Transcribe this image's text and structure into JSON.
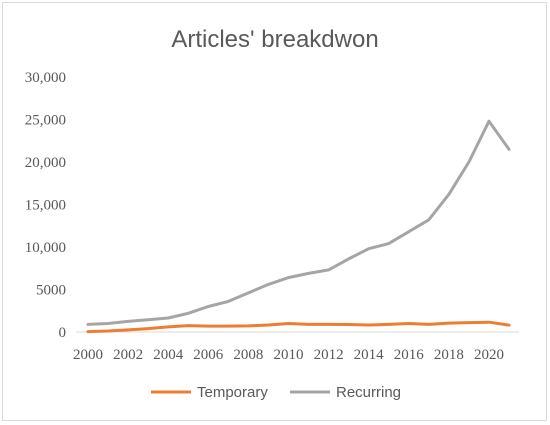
{
  "chart_data": {
    "type": "line",
    "title": "Articles' breakdwon",
    "xlabel": "",
    "ylabel": "",
    "x": [
      2000,
      2001,
      2002,
      2003,
      2004,
      2005,
      2006,
      2007,
      2008,
      2009,
      2010,
      2011,
      2012,
      2013,
      2014,
      2015,
      2016,
      2017,
      2018,
      2019,
      2020,
      2021
    ],
    "x_tick_labels": [
      "2000",
      "2002",
      "2004",
      "2006",
      "2008",
      "2010",
      "2012",
      "2014",
      "2016",
      "2018",
      "2020"
    ],
    "y_tick_labels": [
      "0",
      "5000",
      "10,000",
      "15,000",
      "20,000",
      "25,000",
      "30,000"
    ],
    "ylim": [
      0,
      30000
    ],
    "grid": false,
    "legend_position": "bottom",
    "series": [
      {
        "name": "Temporary",
        "color": "#ed7d31",
        "values": [
          50,
          120,
          250,
          400,
          600,
          750,
          700,
          700,
          720,
          820,
          1000,
          900,
          900,
          880,
          820,
          900,
          1000,
          900,
          1050,
          1100,
          1150,
          800
        ]
      },
      {
        "name": "Recurring",
        "color": "#a5a5a5",
        "values": [
          900,
          1000,
          1250,
          1450,
          1650,
          2200,
          3000,
          3600,
          4600,
          5600,
          6400,
          6900,
          7300,
          8600,
          9800,
          10400,
          11800,
          13200,
          16200,
          20000,
          24800,
          21500
        ]
      }
    ]
  }
}
